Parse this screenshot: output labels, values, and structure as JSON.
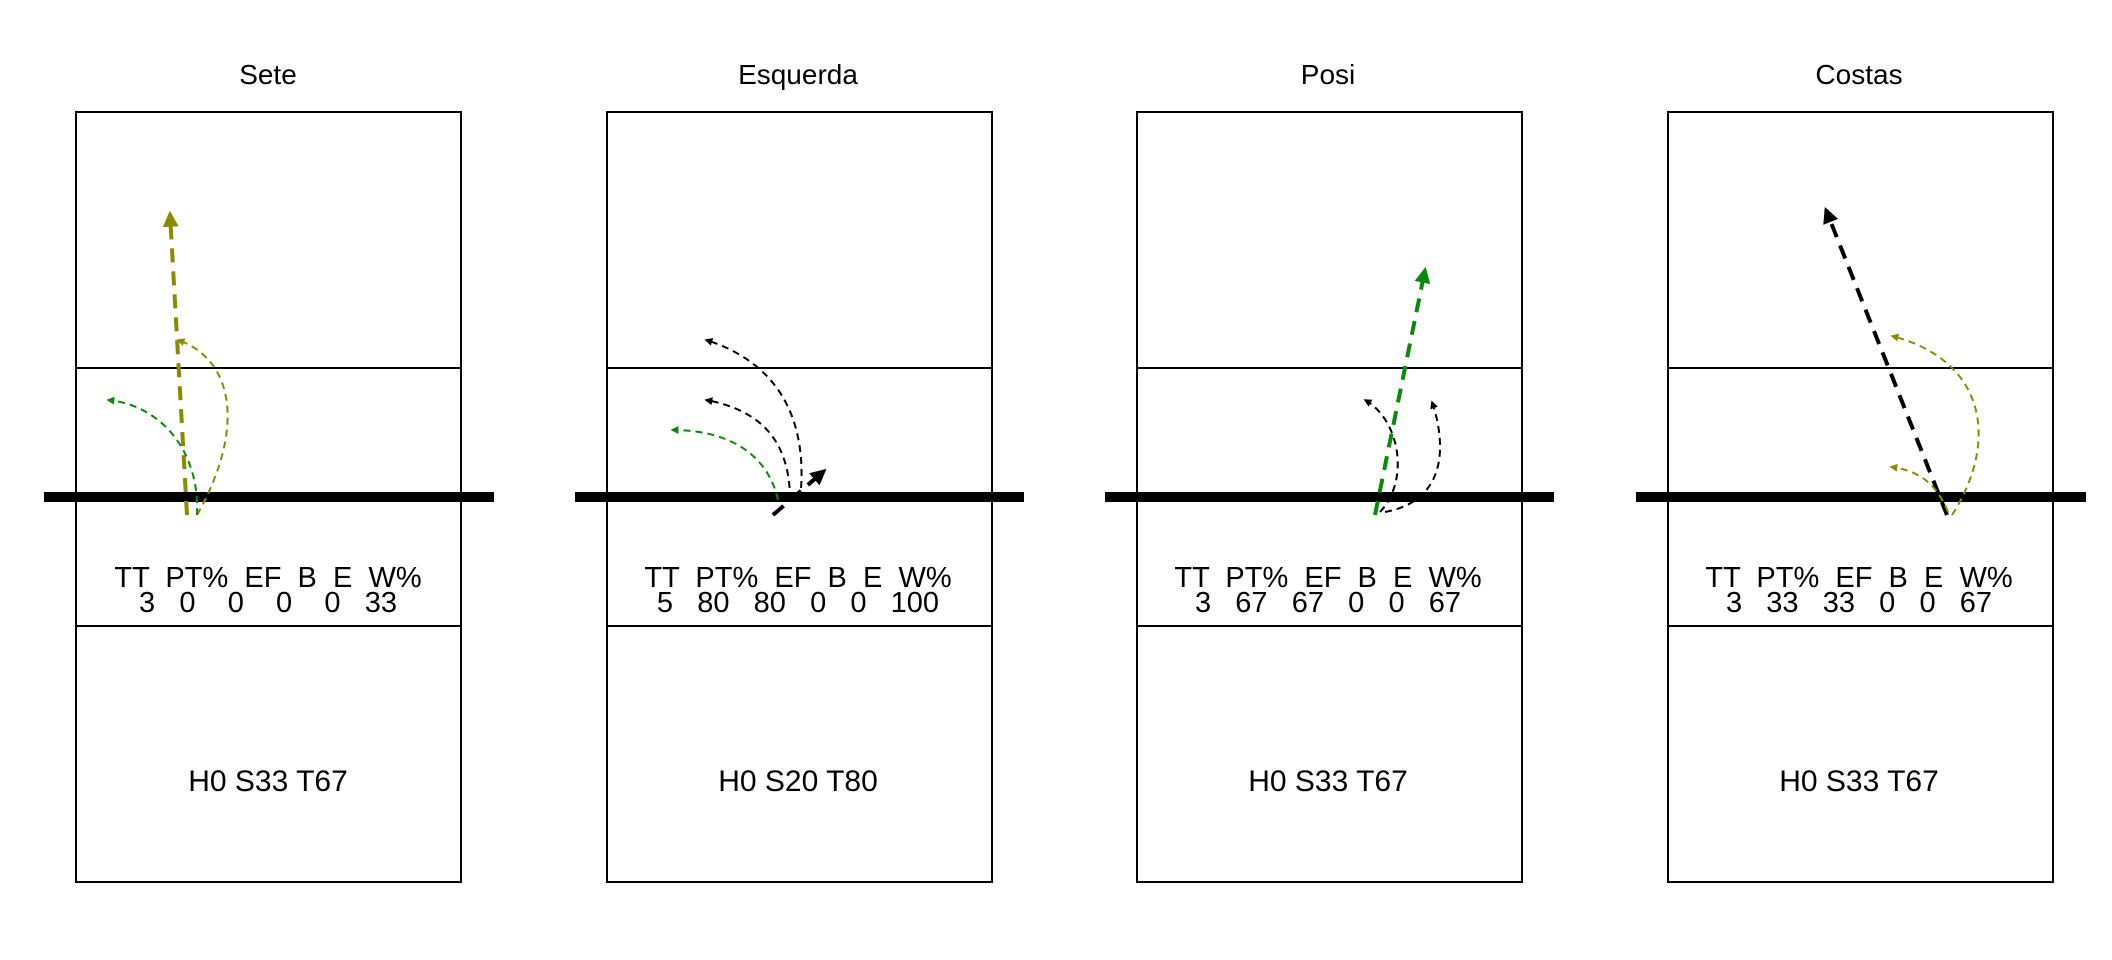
{
  "colors": {
    "olive": "#8b8b00",
    "green": "#0a8a0a",
    "black": "#000000"
  },
  "panels": [
    {
      "title": "Sete",
      "stats_header": "TT  PT%  EF  B  E  W%",
      "stats_values": "3   0    0    0    0   33",
      "summary": "H0 S33 T67"
    },
    {
      "title": "Esquerda",
      "stats_header": "TT  PT%  EF  B  E  W%",
      "stats_values": "5   80   80   0   0   100",
      "summary": "H0 S20 T80"
    },
    {
      "title": "Posi",
      "stats_header": "TT  PT%  EF  B  E  W%",
      "stats_values": "3   67   67   0   0   67",
      "summary": "H0 S33 T67"
    },
    {
      "title": "Costas",
      "stats_header": "TT  PT%  EF  B  E  W%",
      "stats_values": "3   33   33   0   0   67",
      "summary": "H0 S33 T67"
    }
  ]
}
